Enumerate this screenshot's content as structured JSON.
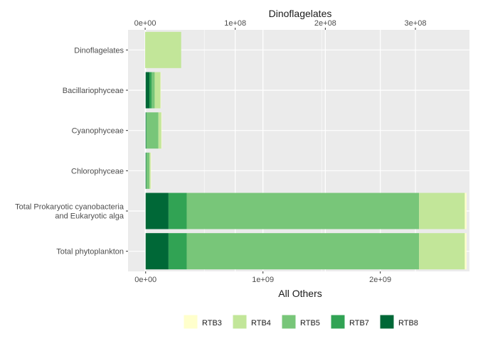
{
  "chart_data": {
    "type": "bar",
    "orientation": "horizontal",
    "stacked": true,
    "categories": [
      "Dinoflagelates",
      "Bacillariophyceae",
      "Cyanophyceae",
      "Chlorophyceae",
      "Total Prokaryotic cyanobacteria and Eukaryotic alga",
      "Total phytoplankton"
    ],
    "category_labels": [
      [
        "Dinoflagelates"
      ],
      [
        "Bacillariophyceae"
      ],
      [
        "Cyanophyceae"
      ],
      [
        "Chlorophyceae"
      ],
      [
        "Total Prokaryotic cyanobacteria",
        "and Eukaryotic alga"
      ],
      [
        "Total phytoplankton"
      ]
    ],
    "series": [
      {
        "name": "RTB8",
        "color": "#006837",
        "values": [
          0,
          32000000,
          4000000,
          4000000,
          195000000,
          195000000
        ]
      },
      {
        "name": "RTB7",
        "color": "#31a354",
        "values": [
          0,
          20000000,
          3000000,
          3000000,
          155000000,
          155000000
        ]
      },
      {
        "name": "RTB5",
        "color": "#78c679",
        "values": [
          0,
          25000000,
          102000000,
          26000000,
          1980000000,
          1980000000
        ]
      },
      {
        "name": "RTB4",
        "color": "#c2e699",
        "values": [
          40000000,
          50000000,
          25000000,
          10000000,
          390000000,
          390000000
        ]
      },
      {
        "name": "RTB3",
        "color": "#ffffcc",
        "values": [
          0,
          2500000,
          500000,
          500000,
          15000000,
          15000000
        ]
      }
    ],
    "top_axis": {
      "title": "Dinoflagelates",
      "ticks": [
        0,
        100000000,
        200000000,
        300000000
      ],
      "tick_labels": [
        "0e+00",
        "1e+08",
        "2e+08",
        "3e+08"
      ],
      "applies_to": "Dinoflagelates",
      "xlim": [
        -19000000,
        360000000
      ]
    },
    "bottom_axis": {
      "title": "All Others",
      "ticks": [
        0,
        1000000000,
        2000000000
      ],
      "tick_labels": [
        "0e+00",
        "1e+09",
        "2e+09"
      ],
      "xlim": [
        -150000000,
        2760000000
      ]
    },
    "legend": {
      "position": "bottom",
      "order": [
        "RTB3",
        "RTB4",
        "RTB5",
        "RTB7",
        "RTB8"
      ]
    },
    "grid": true,
    "panel_background": "#ebebeb",
    "grid_color": "#ffffff"
  }
}
